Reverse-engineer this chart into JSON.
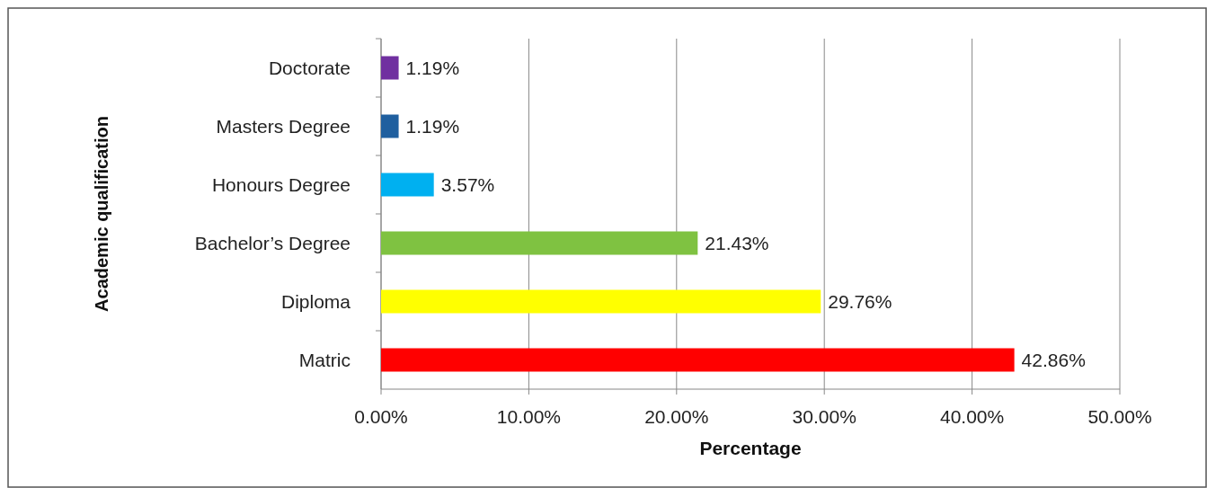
{
  "chart_data": {
    "type": "bar",
    "orientation": "horizontal",
    "xlabel": "Percentage",
    "ylabel": "Academic qualification",
    "categories": [
      "Doctorate",
      "Masters Degree",
      "Honours Degree",
      "Bachelor’s Degree",
      "Diploma",
      "Matric"
    ],
    "values": [
      1.19,
      1.19,
      3.57,
      21.43,
      29.76,
      42.86
    ],
    "colors": [
      "#7030a0",
      "#1f5f9f",
      "#00b0f0",
      "#7fc241",
      "#ffff00",
      "#ff0000"
    ],
    "value_labels": [
      "1.19%",
      "1.19%",
      "3.57%",
      "21.43%",
      "29.76%",
      "42.86%"
    ],
    "xlim": [
      0,
      50
    ],
    "xticks": [
      {
        "value": 0,
        "label": "0.00%"
      },
      {
        "value": 10,
        "label": "10.00%"
      },
      {
        "value": 20,
        "label": "20.00%"
      },
      {
        "value": 30,
        "label": "30.00%"
      },
      {
        "value": 40,
        "label": "40.00%"
      },
      {
        "value": 50,
        "label": "50.00%"
      }
    ],
    "grid": "x"
  }
}
